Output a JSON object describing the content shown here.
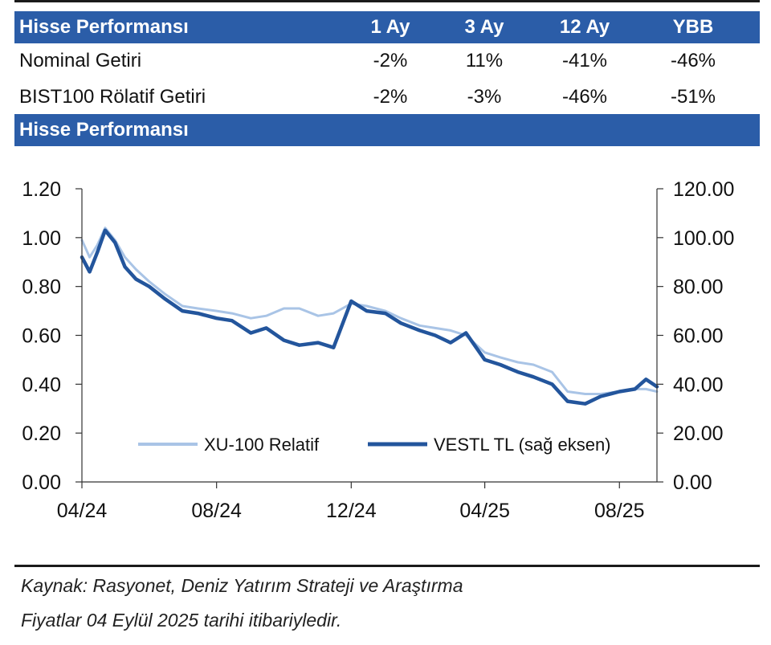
{
  "table": {
    "header": [
      "Hisse Performansı",
      "1 Ay",
      "3 Ay",
      "12 Ay",
      "YBB"
    ],
    "rows": [
      [
        "Nominal Getiri",
        "-2%",
        "11%",
        "-41%",
        "-46%"
      ],
      [
        "BIST100 Rölatif Getiri",
        "-2%",
        "-3%",
        "-46%",
        "-51%"
      ]
    ]
  },
  "section_title": "Hisse Performansı",
  "colors": {
    "header_bg": "#2b5da8",
    "header_text": "#ffffff",
    "series_relative": "#a9c4e6",
    "series_price": "#23559c"
  },
  "chart_data": {
    "type": "line",
    "x_ticks": [
      "04/24",
      "08/24",
      "12/24",
      "04/25",
      "08/25"
    ],
    "x_range": [
      "2024-04-01",
      "2025-09-04"
    ],
    "y_left": {
      "ticks": [
        "0.00",
        "0.20",
        "0.40",
        "0.60",
        "0.80",
        "1.00",
        "1.20"
      ],
      "range": [
        0,
        1.2
      ]
    },
    "y_right": {
      "ticks": [
        "0.00",
        "20.00",
        "40.00",
        "60.00",
        "80.00",
        "100.00",
        "120.00"
      ],
      "range": [
        0,
        120
      ]
    },
    "legend_position": "bottom-right",
    "series": [
      {
        "name": "XU-100 Relatif",
        "axis": "left",
        "x": [
          "2024-04-01",
          "2024-04-08",
          "2024-04-15",
          "2024-04-22",
          "2024-05-01",
          "2024-05-10",
          "2024-05-20",
          "2024-06-01",
          "2024-06-15",
          "2024-07-01",
          "2024-07-15",
          "2024-08-01",
          "2024-08-15",
          "2024-09-01",
          "2024-09-15",
          "2024-10-01",
          "2024-10-15",
          "2024-11-01",
          "2024-11-15",
          "2024-12-01",
          "2024-12-15",
          "2025-01-01",
          "2025-01-15",
          "2025-02-01",
          "2025-02-15",
          "2025-03-01",
          "2025-03-15",
          "2025-04-01",
          "2025-04-15",
          "2025-05-01",
          "2025-05-15",
          "2025-06-01",
          "2025-06-15",
          "2025-07-01",
          "2025-07-15",
          "2025-08-01",
          "2025-08-15",
          "2025-08-25",
          "2025-09-04"
        ],
        "y": [
          0.99,
          0.92,
          0.97,
          1.04,
          0.99,
          0.92,
          0.87,
          0.82,
          0.77,
          0.72,
          0.71,
          0.7,
          0.69,
          0.67,
          0.68,
          0.71,
          0.71,
          0.68,
          0.69,
          0.73,
          0.72,
          0.7,
          0.67,
          0.64,
          0.63,
          0.62,
          0.6,
          0.53,
          0.51,
          0.49,
          0.48,
          0.45,
          0.37,
          0.36,
          0.36,
          0.37,
          0.38,
          0.38,
          0.37
        ]
      },
      {
        "name": "VESTL TL (sağ eksen)",
        "axis": "right",
        "x": [
          "2024-04-01",
          "2024-04-08",
          "2024-04-15",
          "2024-04-22",
          "2024-05-01",
          "2024-05-10",
          "2024-05-20",
          "2024-06-01",
          "2024-06-15",
          "2024-07-01",
          "2024-07-15",
          "2024-08-01",
          "2024-08-15",
          "2024-09-01",
          "2024-09-15",
          "2024-10-01",
          "2024-10-15",
          "2024-11-01",
          "2024-11-15",
          "2024-12-01",
          "2024-12-15",
          "2025-01-01",
          "2025-01-15",
          "2025-02-01",
          "2025-02-15",
          "2025-03-01",
          "2025-03-15",
          "2025-04-01",
          "2025-04-15",
          "2025-05-01",
          "2025-05-15",
          "2025-06-01",
          "2025-06-15",
          "2025-07-01",
          "2025-07-15",
          "2025-08-01",
          "2025-08-15",
          "2025-08-25",
          "2025-09-04"
        ],
        "y": [
          92,
          86,
          94,
          103,
          98,
          88,
          83,
          80,
          75,
          70,
          69,
          67,
          66,
          61,
          63,
          58,
          56,
          57,
          55,
          74,
          70,
          69,
          65,
          62,
          60,
          57,
          61,
          50,
          48,
          45,
          43,
          40,
          33,
          32,
          35,
          37,
          38,
          42,
          39
        ]
      }
    ]
  },
  "source": {
    "line1": "Kaynak: Rasyonet, Deniz Yatırım Strateji ve Araştırma",
    "line2": "Fiyatlar 04 Eylül 2025 tarihi itibariyledir."
  }
}
